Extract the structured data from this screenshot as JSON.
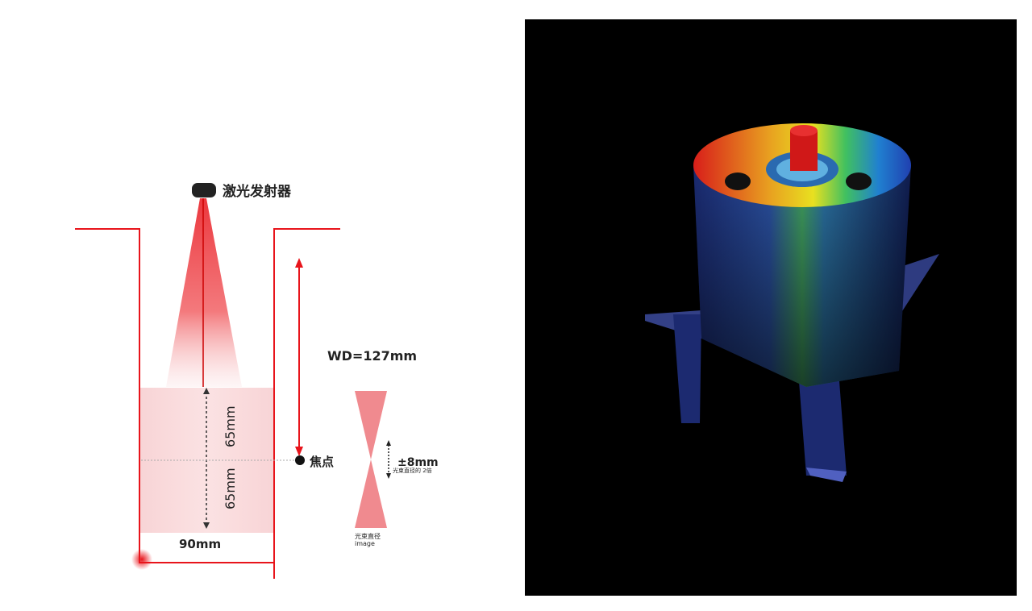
{
  "diagram": {
    "emitter_label": "激光发射器",
    "working_distance": "WD=127mm",
    "focus_label": "焦点",
    "upper_range": "65mm",
    "lower_range": "65mm",
    "width_label": "90mm",
    "tolerance": "±8mm",
    "tolerance_note": "光束直径的 2倍",
    "beam_note_line1": "光束直径",
    "beam_note_line2": "image",
    "colors": {
      "laser": "#e8141b",
      "zone": "#f6c9cc",
      "beam_waist": "#f08a8f"
    }
  },
  "render": {
    "description_colors": {
      "background": "#000000",
      "low": "#1a2a8a",
      "high": "#e0241a"
    }
  }
}
